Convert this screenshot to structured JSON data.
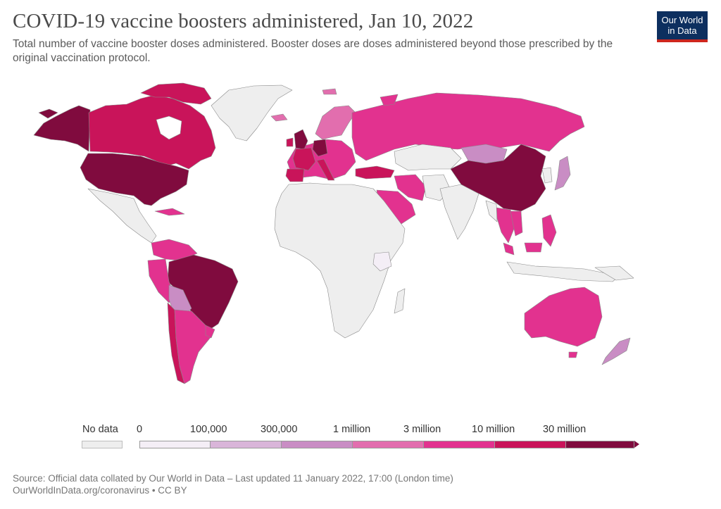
{
  "header": {
    "title": "COVID-19 vaccine boosters administered, Jan 10, 2022",
    "subtitle": "Total number of vaccine booster doses administered. Booster doses are doses administered beyond those prescribed by the original vaccination protocol."
  },
  "logo": {
    "line1": "Our World",
    "line2": "in Data",
    "bg_color": "#0d2f5f",
    "accent_color": "#ce261e"
  },
  "legend": {
    "no_data_label": "No data",
    "no_data_color": "#eeeeee",
    "thresholds": [
      "0",
      "100,000",
      "300,000",
      "1 million",
      "3 million",
      "10 million",
      "30 million"
    ],
    "bin_colors": [
      "#f4eef6",
      "#d9b5d9",
      "#c98dc4",
      "#e26eae",
      "#e2328f",
      "#c9145a",
      "#800b3e"
    ]
  },
  "map_regions": [
    {
      "name": "Canada",
      "bin": 5
    },
    {
      "name": "United States",
      "bin": 6
    },
    {
      "name": "Alaska",
      "bin": 6
    },
    {
      "name": "Greenland",
      "bin": null
    },
    {
      "name": "Mexico",
      "bin": null
    },
    {
      "name": "Brazil",
      "bin": 6
    },
    {
      "name": "Argentina",
      "bin": 4
    },
    {
      "name": "Chile",
      "bin": 5
    },
    {
      "name": "Peru",
      "bin": 4
    },
    {
      "name": "Colombia",
      "bin": 4
    },
    {
      "name": "Bolivia",
      "bin": 2
    },
    {
      "name": "Uruguay",
      "bin": 4
    },
    {
      "name": "Russia",
      "bin": 4
    },
    {
      "name": "China",
      "bin": 6
    },
    {
      "name": "Mongolia",
      "bin": 2
    },
    {
      "name": "Japan",
      "bin": 2
    },
    {
      "name": "Kazakhstan",
      "bin": null
    },
    {
      "name": "Turkey",
      "bin": 5
    },
    {
      "name": "Iran",
      "bin": 4
    },
    {
      "name": "Saudi Arabia",
      "bin": 4
    },
    {
      "name": "India",
      "bin": null
    },
    {
      "name": "Thailand",
      "bin": 4
    },
    {
      "name": "Malaysia",
      "bin": 4
    },
    {
      "name": "Philippines",
      "bin": 4
    },
    {
      "name": "Indonesia",
      "bin": null
    },
    {
      "name": "Australia",
      "bin": 4
    },
    {
      "name": "New Zealand",
      "bin": 2
    },
    {
      "name": "United Kingdom",
      "bin": 6
    },
    {
      "name": "Germany",
      "bin": 6
    },
    {
      "name": "France",
      "bin": 5
    },
    {
      "name": "Spain",
      "bin": 5
    },
    {
      "name": "Italy",
      "bin": 5
    },
    {
      "name": "Scandinavia",
      "bin": 3
    },
    {
      "name": "Africa",
      "bin": null
    },
    {
      "name": "Kenya",
      "bin": 0
    }
  ],
  "source": {
    "line1": "Source: Official data collated by Our World in Data – Last updated 11 January 2022, 17:00 (London time)",
    "line2": "OurWorldInData.org/coronavirus • CC BY"
  }
}
